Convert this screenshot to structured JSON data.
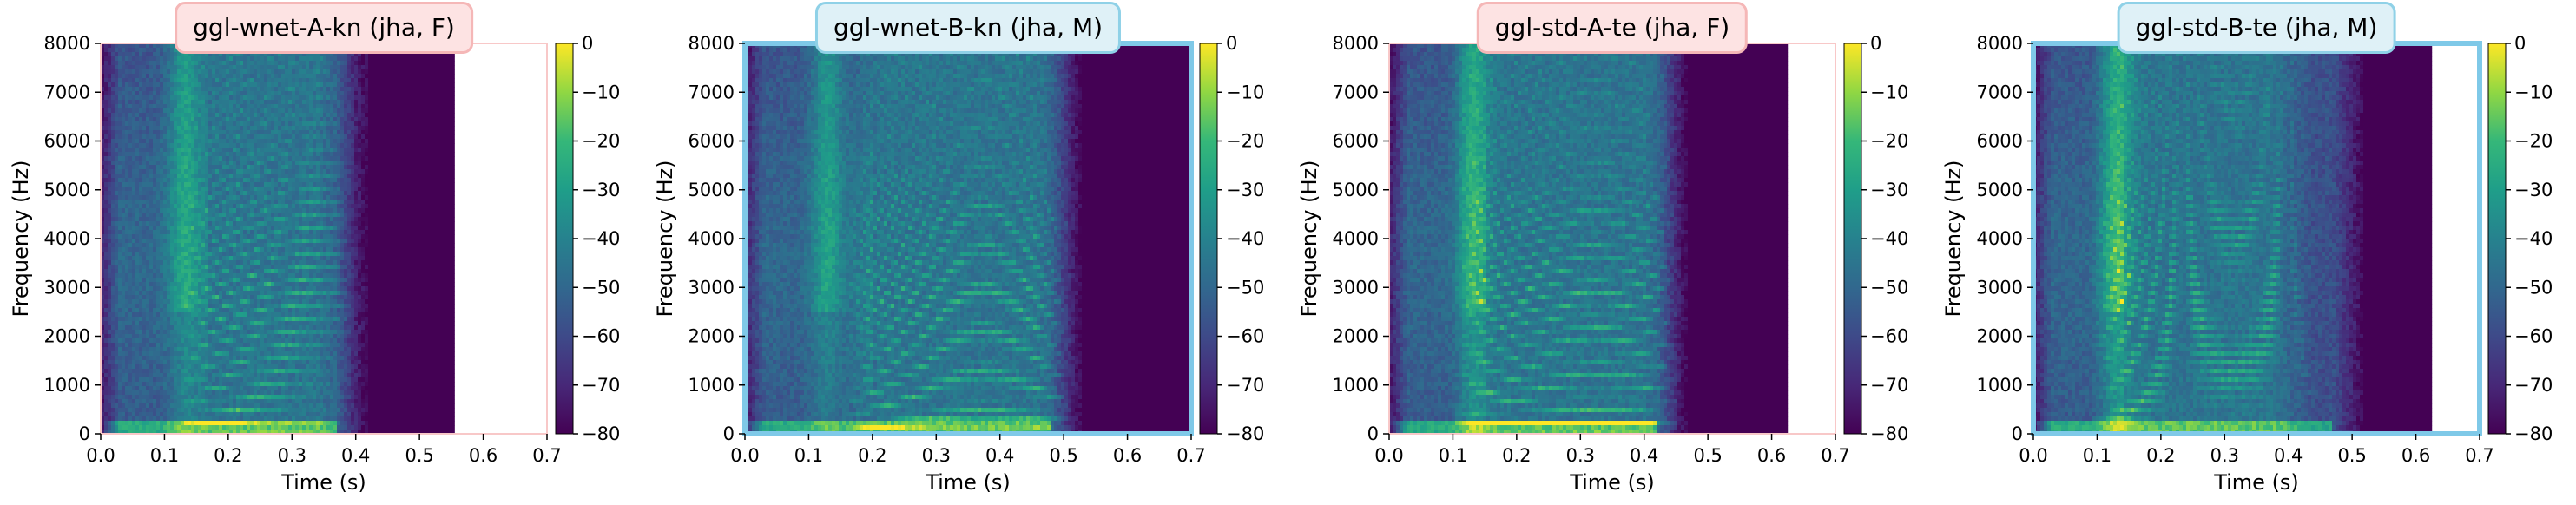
{
  "chart_data": [
    {
      "type": "heatmap",
      "title": "ggl-wnet-A-kn (jha, F)",
      "title_style": "pink",
      "xlabel": "Time (s)",
      "ylabel": "Frequency (Hz)",
      "xlim": [
        0.0,
        0.7
      ],
      "ylim": [
        0,
        8000
      ],
      "xticks": [
        "0.0",
        "0.1",
        "0.2",
        "0.3",
        "0.4",
        "0.5",
        "0.6",
        "0.7"
      ],
      "yticks": [
        "0",
        "1000",
        "2000",
        "3000",
        "4000",
        "5000",
        "6000",
        "7000",
        "8000"
      ],
      "colorbar": {
        "ticks": [
          "0",
          "−10",
          "−20",
          "−30",
          "−40",
          "−50",
          "−60",
          "−70",
          "−80"
        ],
        "range": [
          -80,
          0
        ],
        "colormap": "viridis"
      },
      "data_end_s": 0.555,
      "speech": {
        "start": 0.0,
        "end": 0.42,
        "voiced_start": 0.17,
        "voiced_end": 0.36,
        "f0": 230
      },
      "plot_frame": "#f8c8c8"
    },
    {
      "type": "heatmap",
      "title": "ggl-wnet-B-kn (jha, M)",
      "title_style": "blue",
      "xlabel": "Time (s)",
      "ylabel": "Frequency (Hz)",
      "xlim": [
        0.0,
        0.7
      ],
      "ylim": [
        0,
        8000
      ],
      "xticks": [
        "0.0",
        "0.1",
        "0.2",
        "0.3",
        "0.4",
        "0.5",
        "0.6",
        "0.7"
      ],
      "yticks": [
        "0",
        "1000",
        "2000",
        "3000",
        "4000",
        "5000",
        "6000",
        "7000",
        "8000"
      ],
      "colorbar": {
        "ticks": [
          "0",
          "−10",
          "−20",
          "−30",
          "−40",
          "−50",
          "−60",
          "−70",
          "−80"
        ],
        "range": [
          -80,
          0
        ],
        "colormap": "viridis"
      },
      "data_end_s": 0.7,
      "speech": {
        "start": 0.0,
        "end": 0.53,
        "voiced_start": 0.2,
        "voiced_end": 0.48,
        "f0": 140
      },
      "plot_frame": "#7fc9e8"
    },
    {
      "type": "heatmap",
      "title": "ggl-std-A-te (jha, F)",
      "title_style": "pink",
      "xlabel": "Time (s)",
      "ylabel": "Frequency (Hz)",
      "xlim": [
        0.0,
        0.7
      ],
      "ylim": [
        0,
        8000
      ],
      "xticks": [
        "0.0",
        "0.1",
        "0.2",
        "0.3",
        "0.4",
        "0.5",
        "0.6",
        "0.7"
      ],
      "yticks": [
        "0",
        "1000",
        "2000",
        "3000",
        "4000",
        "5000",
        "6000",
        "7000",
        "8000"
      ],
      "colorbar": {
        "ticks": [
          "0",
          "−10",
          "−20",
          "−30",
          "−40",
          "−50",
          "−60",
          "−70",
          "−80"
        ],
        "range": [
          -80,
          0
        ],
        "colormap": "viridis"
      },
      "data_end_s": 0.625,
      "speech": {
        "start": 0.0,
        "end": 0.47,
        "voiced_start": 0.15,
        "voiced_end": 0.42,
        "f0": 210
      },
      "plot_frame": "#f8c8c8"
    },
    {
      "type": "heatmap",
      "title": "ggl-std-B-te (jha, M)",
      "title_style": "blue",
      "xlabel": "Time (s)",
      "ylabel": "Frequency (Hz)",
      "xlim": [
        0.0,
        0.7
      ],
      "ylim": [
        0,
        8000
      ],
      "xticks": [
        "0.0",
        "0.1",
        "0.2",
        "0.3",
        "0.4",
        "0.5",
        "0.6",
        "0.7"
      ],
      "yticks": [
        "0",
        "1000",
        "2000",
        "3000",
        "4000",
        "5000",
        "6000",
        "7000",
        "8000"
      ],
      "colorbar": {
        "ticks": [
          "0",
          "−10",
          "−20",
          "−30",
          "−40",
          "−50",
          "−60",
          "−70",
          "−80"
        ],
        "range": [
          -80,
          0
        ],
        "colormap": "viridis"
      },
      "data_end_s": 0.625,
      "speech": {
        "start": 0.0,
        "end": 0.52,
        "voiced_start": 0.14,
        "voiced_end": 0.4,
        "f0": 160
      },
      "plot_frame": "#7fc9e8"
    }
  ]
}
